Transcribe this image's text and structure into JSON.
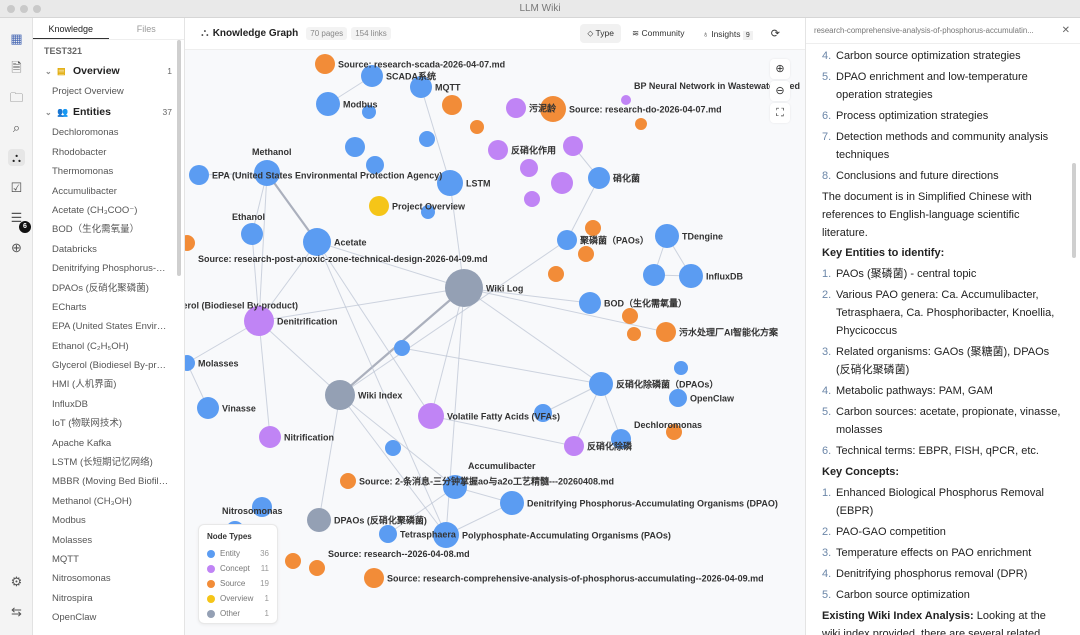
{
  "window": {
    "title": "LLM Wiki"
  },
  "rail": {
    "icons": [
      "logo-icon",
      "document-icon",
      "folder-icon",
      "search-icon",
      "graph-icon",
      "clipboard-check-icon",
      "list-icon",
      "globe-icon",
      "settings-icon",
      "swap-icon"
    ],
    "badge": "6"
  },
  "sidebar": {
    "tabs": [
      "Knowledge",
      "Files"
    ],
    "project": "TEST321",
    "overview": {
      "label": "Overview",
      "count": "1",
      "items": [
        "Project Overview"
      ]
    },
    "entities": {
      "label": "Entities",
      "count": "37",
      "items": [
        "Dechloromonas",
        "Rhodobacter",
        "Thermomonas",
        "Accumulibacter",
        "Acetate (CH₃COO⁻)",
        "BOD（生化需氧量）",
        "Databricks",
        "Denitrifying Phosphorus-Accumulating Organisms (DPAO)",
        "DPAOs (反硝化聚磷菌)",
        "ECharts",
        "EPA (United States Environmental Protection Agency)",
        "Ethanol (C₂H₅OH)",
        "Glycerol (Biodiesel By-product)",
        "HMI (人机界面)",
        "InfluxDB",
        "IoT (物联网技术)",
        "Apache Kafka",
        "LSTM (长短期记忆网络)",
        "MBBR (Moving Bed Biofilm Reactor)",
        "Methanol (CH₃OH)",
        "Modbus",
        "Molasses",
        "MQTT",
        "Nitrosomonas",
        "Nitrospira",
        "OpenClaw"
      ]
    }
  },
  "graph": {
    "title": "Knowledge Graph",
    "pages": "70 pages",
    "links": "154 links",
    "buttons": {
      "type": "Type",
      "community": "Community",
      "insights": "Insights",
      "insights_count": "9"
    },
    "colors": {
      "entity": "#5b9cf2",
      "concept": "#c084f5",
      "source": "#f28c38",
      "overview": "#f5c518",
      "other": "#94a0b4"
    },
    "legend": {
      "title": "Node Types",
      "rows": [
        {
          "type": "entity",
          "label": "Entity",
          "count": "36"
        },
        {
          "type": "concept",
          "label": "Concept",
          "count": "11"
        },
        {
          "type": "source",
          "label": "Source",
          "count": "19"
        },
        {
          "type": "overview",
          "label": "Overview",
          "count": "1"
        },
        {
          "type": "other",
          "label": "Other",
          "count": "1"
        }
      ]
    },
    "nodes": [
      {
        "type": "source",
        "label": "Source: research-scada-2026-04-07.md"
      },
      {
        "type": "entity",
        "label": "SCADA系统"
      },
      {
        "type": "entity",
        "label": "MQTT"
      },
      {
        "type": "entity",
        "label": "Modbus"
      },
      {
        "type": "entity",
        "label": ""
      },
      {
        "type": "source",
        "label": ""
      },
      {
        "type": "source",
        "label": ""
      },
      {
        "type": "concept",
        "label": "污泥龄"
      },
      {
        "type": "source",
        "label": "Source: research-do-2026-04-07.md"
      },
      {
        "type": "concept",
        "label": "BP Neural Network in Wastewater Pred"
      },
      {
        "type": "source",
        "label": ""
      },
      {
        "type": "entity",
        "label": ""
      },
      {
        "type": "entity",
        "label": ""
      },
      {
        "type": "entity",
        "label": ""
      },
      {
        "type": "concept",
        "label": "反硝化作用"
      },
      {
        "type": "concept",
        "label": ""
      },
      {
        "type": "concept",
        "label": ""
      },
      {
        "type": "concept",
        "label": ""
      },
      {
        "type": "concept",
        "label": ""
      },
      {
        "type": "entity",
        "label": "硝化菌"
      },
      {
        "type": "entity",
        "label": "EPA (United States Environmental Protection Agency)"
      },
      {
        "type": "entity",
        "label": "Methanol"
      },
      {
        "type": "entity",
        "label": "LSTM"
      },
      {
        "type": "overview",
        "label": "Project Overview"
      },
      {
        "type": "entity",
        "label": ""
      },
      {
        "type": "entity",
        "label": "Ethanol"
      },
      {
        "type": "entity",
        "label": "Acetate"
      },
      {
        "type": "source",
        "label": "Source: research-post-anoxic-zone-technical-design-2026-04-09.md"
      },
      {
        "type": "source",
        "label": ""
      },
      {
        "type": "source",
        "label": ""
      },
      {
        "type": "entity",
        "label": "聚磷菌（PAOs）"
      },
      {
        "type": "entity",
        "label": "TDengine"
      },
      {
        "type": "entity",
        "label": ""
      },
      {
        "type": "entity",
        "label": "InfluxDB"
      },
      {
        "type": "source",
        "label": ""
      },
      {
        "type": "other",
        "label": "Wiki Log"
      },
      {
        "type": "entity",
        "label": "BOD（生化需氧量）"
      },
      {
        "type": "source",
        "label": ""
      },
      {
        "type": "source",
        "label": ""
      },
      {
        "type": "source",
        "label": "污水处理厂AI智能化方案"
      },
      {
        "type": "entity",
        "label": "Glycerol (Biodiesel By-product)"
      },
      {
        "type": "concept",
        "label": "Denitrification"
      },
      {
        "type": "entity",
        "label": ""
      },
      {
        "type": "entity",
        "label": "Molasses"
      },
      {
        "type": "other",
        "label": "Wiki Index"
      },
      {
        "type": "entity",
        "label": "Vinasse"
      },
      {
        "type": "concept",
        "label": "Volatile Fatty Acids (VFAs)"
      },
      {
        "type": "entity",
        "label": ""
      },
      {
        "type": "entity",
        "label": "反硝化除磷菌（DPAOs）"
      },
      {
        "type": "entity",
        "label": "OpenClaw"
      },
      {
        "type": "entity",
        "label": ""
      },
      {
        "type": "concept",
        "label": "Nitrification"
      },
      {
        "type": "entity",
        "label": ""
      },
      {
        "type": "source",
        "label": ""
      },
      {
        "type": "concept",
        "label": "反硝化除磷"
      },
      {
        "type": "entity",
        "label": "Dechloromonas"
      },
      {
        "type": "source",
        "label": "Source: 2-条消息-三分钟掌握ao与a2o工艺精髓---20260408.md"
      },
      {
        "type": "entity",
        "label": "Accumulibacter"
      },
      {
        "type": "entity",
        "label": ""
      },
      {
        "type": "other",
        "label": "DPAOs (反硝化聚磷菌)"
      },
      {
        "type": "entity",
        "label": "Denitrifying Phosphorus-Accumulating Organisms (DPAO)"
      },
      {
        "type": "entity",
        "label": "Tetrasphaera"
      },
      {
        "type": "entity",
        "label": "Polyphosphate-Accumulating Organisms (PAOs)"
      },
      {
        "type": "entity",
        "label": "Nitrosomonas"
      },
      {
        "type": "source",
        "label": ""
      },
      {
        "type": "source",
        "label": "Source: research--2026-04-08.md"
      },
      {
        "type": "source",
        "label": "Source: research-comprehensive-analysis-of-phosphorus-accumulating--2026-04-09.md"
      }
    ]
  },
  "doc": {
    "title": "research-comprehensive-analysis-of-phosphorus-accumulatin...",
    "list1": [
      {
        "n": "4.",
        "t": "Carbon source optimization strategies"
      },
      {
        "n": "5.",
        "t": "DPAO enrichment and low-temperature operation strategies"
      },
      {
        "n": "6.",
        "t": "Process optimization strategies"
      },
      {
        "n": "7.",
        "t": "Detection methods and community analysis techniques"
      },
      {
        "n": "8.",
        "t": "Conclusions and future directions"
      }
    ],
    "para1": "The document is in Simplified Chinese with references to English-language scientific literature.",
    "h_entities": "Key Entities to identify:",
    "entities": [
      {
        "n": "1.",
        "t": "PAOs (聚磷菌) - central topic"
      },
      {
        "n": "2.",
        "t": "Various PAO genera: Ca. Accumulibacter, Tetrasphaera, Ca. Phosphoribacter, Knoellia, Phycicoccus"
      },
      {
        "n": "3.",
        "t": "Related organisms: GAOs (聚糖菌), DPAOs (反硝化聚磷菌)"
      },
      {
        "n": "4.",
        "t": "Metabolic pathways: PAM, GAM"
      },
      {
        "n": "5.",
        "t": "Carbon sources: acetate, propionate, vinasse, molasses"
      },
      {
        "n": "6.",
        "t": "Technical terms: EBPR, FISH, qPCR, etc."
      }
    ],
    "h_concepts": "Key Concepts:",
    "concepts": [
      {
        "n": "1.",
        "t": "Enhanced Biological Phosphorus Removal (EBPR)"
      },
      {
        "n": "2.",
        "t": "PAO-GAO competition"
      },
      {
        "n": "3.",
        "t": "Temperature effects on PAO enrichment"
      },
      {
        "n": "4.",
        "t": "Denitrifying phosphorus removal (DPR)"
      },
      {
        "n": "5.",
        "t": "Carbon source optimization"
      }
    ],
    "h_index": "Existing Wiki Index Analysis:",
    "index_text": " Looking at the wiki index provided, there are several related entries:"
  }
}
